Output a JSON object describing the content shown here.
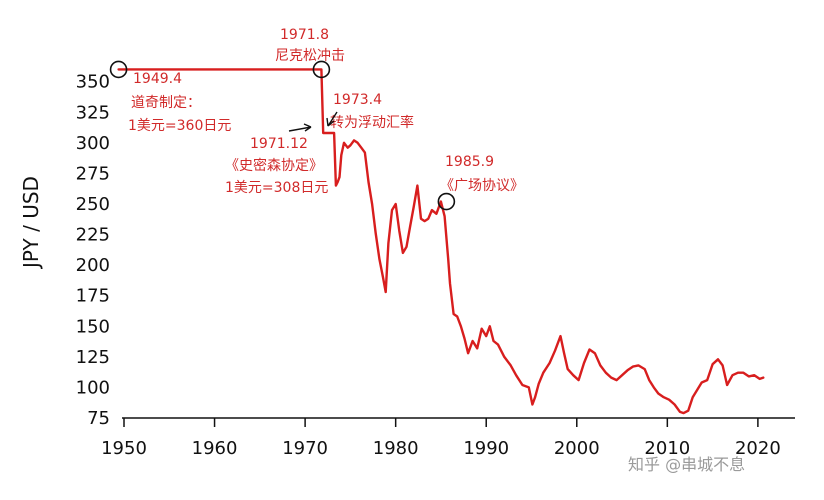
{
  "chart_data": {
    "type": "line",
    "title": "",
    "xlabel": "",
    "ylabel": "JPY / USD",
    "xlim": [
      1950,
      2022
    ],
    "ylim": [
      75,
      362
    ],
    "xticks": [
      "1950",
      "1960",
      "1970",
      "1980",
      "1990",
      "2000",
      "2010",
      "2020"
    ],
    "yticks": [
      "75",
      "100",
      "125",
      "150",
      "175",
      "200",
      "225",
      "250",
      "275",
      "300",
      "325",
      "350"
    ],
    "grid": false,
    "line_color": "#d81e1e",
    "x": [
      1949.4,
      1971.6,
      1971.8,
      1971.9,
      1972.0,
      1973.0,
      1973.2,
      1973.4,
      1973.6,
      1973.8,
      1974.0,
      1974.3,
      1974.7,
      1975.0,
      1975.4,
      1975.8,
      1976.2,
      1976.6,
      1977.0,
      1977.4,
      1977.8,
      1978.2,
      1978.6,
      1978.9,
      1979.2,
      1979.6,
      1980.0,
      1980.4,
      1980.8,
      1981.2,
      1981.6,
      1982.0,
      1982.4,
      1982.8,
      1983.2,
      1983.6,
      1984.0,
      1984.5,
      1985.0,
      1985.4,
      1985.8,
      1986.0,
      1986.4,
      1986.8,
      1987.2,
      1987.6,
      1988.0,
      1988.5,
      1989.0,
      1989.5,
      1990.0,
      1990.4,
      1990.8,
      1991.3,
      1992.0,
      1992.7,
      1993.3,
      1994.0,
      1994.7,
      1995.1,
      1995.4,
      1995.8,
      1996.3,
      1997.0,
      1997.6,
      1998.2,
      1998.6,
      1999.0,
      1999.6,
      2000.2,
      2000.8,
      2001.4,
      2002.0,
      2002.6,
      2003.2,
      2003.8,
      2004.4,
      2005.0,
      2005.6,
      2006.2,
      2006.8,
      2007.5,
      2008.0,
      2008.5,
      2009.0,
      2009.6,
      2010.2,
      2010.8,
      2011.4,
      2011.8,
      2012.3,
      2012.8,
      2013.3,
      2013.8,
      2014.4,
      2015.0,
      2015.6,
      2016.1,
      2016.6,
      2017.2,
      2017.8,
      2018.4,
      2019.0,
      2019.6,
      2020.2,
      2020.6
    ],
    "y": [
      360,
      360,
      360,
      334,
      308,
      308,
      308,
      265,
      268,
      272,
      290,
      300,
      296,
      298,
      302,
      300,
      296,
      292,
      268,
      250,
      226,
      205,
      190,
      178,
      218,
      245,
      250,
      228,
      210,
      215,
      232,
      248,
      265,
      238,
      236,
      238,
      245,
      242,
      252,
      240,
      205,
      185,
      160,
      158,
      150,
      140,
      128,
      138,
      132,
      148,
      142,
      150,
      138,
      135,
      125,
      118,
      110,
      102,
      100,
      86,
      92,
      103,
      112,
      120,
      130,
      142,
      128,
      115,
      110,
      106,
      120,
      131,
      128,
      118,
      112,
      108,
      106,
      110,
      114,
      117,
      118,
      115,
      106,
      100,
      95,
      92,
      90,
      86,
      80,
      79,
      81,
      92,
      98,
      104,
      106,
      119,
      123,
      118,
      102,
      110,
      112,
      112,
      109,
      110,
      107,
      108
    ]
  },
  "annotations": [
    {
      "date": "1949.4",
      "line1": "道奇制定：",
      "line2": "1美元=360日元"
    },
    {
      "date": "1971.8",
      "line1": "尼克松冲击"
    },
    {
      "date": "1973.4",
      "line1": "转为浮动汇率"
    },
    {
      "date": "1971.12",
      "line1": "《史密森协定》",
      "line2": "1美元=308日元"
    },
    {
      "date": "1985.9",
      "line1": "《广场协议》"
    }
  ],
  "watermark": "知乎 @串城不息"
}
